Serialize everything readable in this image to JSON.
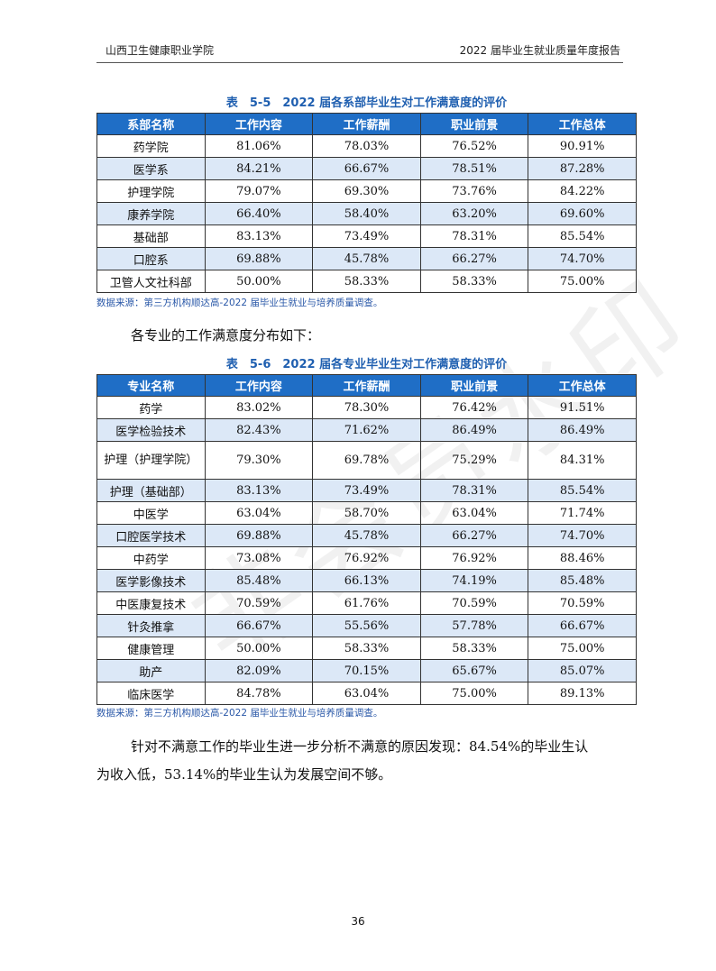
{
  "header": {
    "left": "山西卫生健康职业学院",
    "right": "2022 届毕业生就业质量年度报告"
  },
  "table1": {
    "caption": "表　5-5　2022 届各系部毕业生对工作满意度的评价",
    "headers": [
      "系部名称",
      "工作内容",
      "工作薪酬",
      "职业前景",
      "工作总体"
    ],
    "rows": [
      [
        "药学院",
        "81.06%",
        "78.03%",
        "76.52%",
        "90.91%"
      ],
      [
        "医学系",
        "84.21%",
        "66.67%",
        "78.51%",
        "87.28%"
      ],
      [
        "护理学院",
        "79.07%",
        "69.30%",
        "73.76%",
        "84.22%"
      ],
      [
        "康养学院",
        "66.40%",
        "58.40%",
        "63.20%",
        "69.60%"
      ],
      [
        "基础部",
        "83.13%",
        "73.49%",
        "78.31%",
        "85.54%"
      ],
      [
        "口腔系",
        "69.88%",
        "45.78%",
        "66.27%",
        "74.70%"
      ],
      [
        "卫管人文社科部",
        "50.00%",
        "58.33%",
        "58.33%",
        "75.00%"
      ]
    ],
    "source": "数据来源：第三方机构顺达高-2022 届毕业生就业与培养质量调查。"
  },
  "intro": "各专业的工作满意度分布如下：",
  "table2": {
    "caption": "表　5-6　2022 届各专业毕业生对工作满意度的评价",
    "headers": [
      "专业名称",
      "工作内容",
      "工作薪酬",
      "职业前景",
      "工作总体"
    ],
    "rows": [
      [
        "药学",
        "83.02%",
        "78.30%",
        "76.42%",
        "91.51%"
      ],
      [
        "医学检验技术",
        "82.43%",
        "71.62%",
        "86.49%",
        "86.49%"
      ],
      [
        "护理（护理学院）",
        "79.30%",
        "69.78%",
        "75.29%",
        "84.31%"
      ],
      [
        "护理（基础部）",
        "83.13%",
        "73.49%",
        "78.31%",
        "85.54%"
      ],
      [
        "中医学",
        "63.04%",
        "58.70%",
        "63.04%",
        "71.74%"
      ],
      [
        "口腔医学技术",
        "69.88%",
        "45.78%",
        "66.27%",
        "74.70%"
      ],
      [
        "中药学",
        "73.08%",
        "76.92%",
        "76.92%",
        "88.46%"
      ],
      [
        "医学影像技术",
        "85.48%",
        "66.13%",
        "74.19%",
        "85.48%"
      ],
      [
        "中医康复技术",
        "70.59%",
        "61.76%",
        "70.59%",
        "70.59%"
      ],
      [
        "针灸推拿",
        "66.67%",
        "55.56%",
        "57.78%",
        "66.67%"
      ],
      [
        "健康管理",
        "50.00%",
        "58.33%",
        "58.33%",
        "75.00%"
      ],
      [
        "助产",
        "82.09%",
        "70.15%",
        "65.67%",
        "85.07%"
      ],
      [
        "临床医学",
        "84.78%",
        "63.04%",
        "75.00%",
        "89.13%"
      ]
    ],
    "source": "数据来源：第三方机构顺达高-2022 届毕业生就业与培养质量调查。"
  },
  "conclusion": {
    "line1": "针对不满意工作的毕业生进一步分析不满意的原因发现：84.54%的毕业生认",
    "line2": "为收入低，53.14%的毕业生认为发展空间不够。"
  },
  "watermark": "非会员水印",
  "page_number": "36"
}
